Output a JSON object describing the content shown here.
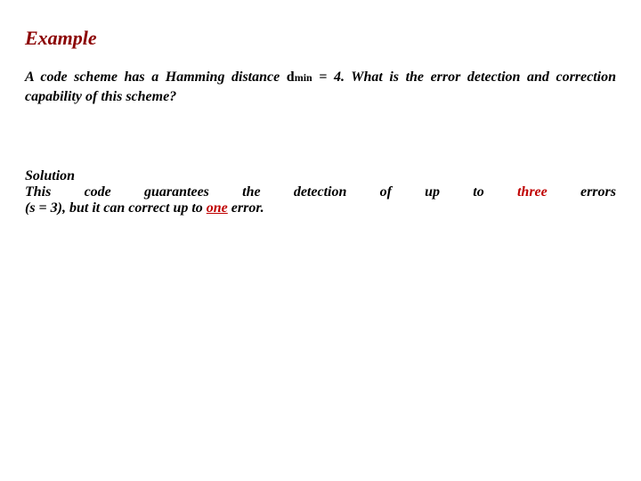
{
  "title": "Example",
  "question": {
    "part1": "A code scheme has a Hamming distance ",
    "dmin_d": "d",
    "dmin_min": "min",
    "part2": " = 4. What is the error detection and correction capability of this scheme?"
  },
  "solution": {
    "label": "Solution",
    "line1": {
      "t1": "This code guarantees the detection of up to ",
      "kw1": "three",
      "t2": " errors"
    },
    "line2": {
      "t1": "(s = 3), but it can correct up to ",
      "kw1": "one",
      "t2": " error."
    }
  },
  "colors": {
    "title": "#8b0000",
    "keyword": "#c00000",
    "text": "#000000",
    "background": "#ffffff"
  }
}
